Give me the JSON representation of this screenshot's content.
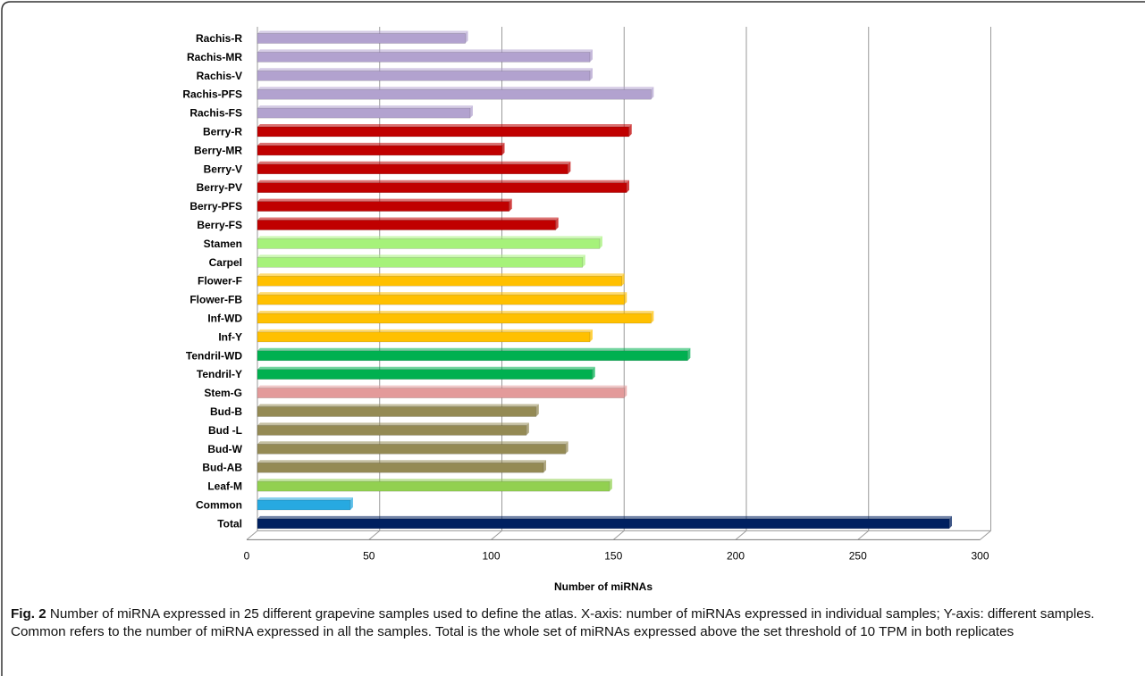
{
  "chart_data": {
    "type": "bar",
    "orientation": "horizontal",
    "xlabel": "Number of miRNAs",
    "ylabel": "",
    "xlim": [
      0,
      300
    ],
    "xticks": [
      0,
      50,
      100,
      150,
      200,
      250,
      300
    ],
    "grid": true,
    "legend": "none",
    "categories": [
      "Rachis-R",
      "Rachis-MR",
      "Rachis-V",
      "Rachis-PFS",
      "Rachis-FS",
      "Berry-R",
      "Berry-MR",
      "Berry-V",
      "Berry-PV",
      "Berry-PFS",
      "Berry-FS",
      "Stamen",
      "Carpel",
      "Flower-F",
      "Flower-FB",
      "Inf-WD",
      "Inf-Y",
      "Tendril-WD",
      "Tendril-Y",
      "Stem-G",
      "Bud-B",
      "Bud -L",
      "Bud-W",
      "Bud-AB",
      "Leaf-M",
      "Common",
      "Total"
    ],
    "values": [
      85,
      136,
      136,
      161,
      87,
      152,
      100,
      127,
      151,
      103,
      122,
      140,
      133,
      149,
      150,
      161,
      136,
      176,
      137,
      150,
      114,
      110,
      126,
      117,
      144,
      38,
      283
    ],
    "colors": [
      "#b2a2cf",
      "#b2a2cf",
      "#b2a2cf",
      "#b2a2cf",
      "#b2a2cf",
      "#c00000",
      "#c00000",
      "#c00000",
      "#c00000",
      "#c00000",
      "#c00000",
      "#a6f27a",
      "#a6f27a",
      "#ffc000",
      "#ffc000",
      "#ffc000",
      "#ffc000",
      "#00b050",
      "#00b050",
      "#e39a9a",
      "#948a54",
      "#948a54",
      "#948a54",
      "#948a54",
      "#92d050",
      "#27a9e1",
      "#002060"
    ]
  },
  "caption": {
    "label": "Fig. 2",
    "text": " Number of miRNA expressed in 25 different grapevine samples used to define the atlas. X-axis: number of miRNAs expressed in individual samples; Y-axis: different samples. Common refers to the number of miRNA expressed in all the samples. Total is the whole set of miRNAs expressed above the set threshold of 10 TPM in both replicates"
  }
}
